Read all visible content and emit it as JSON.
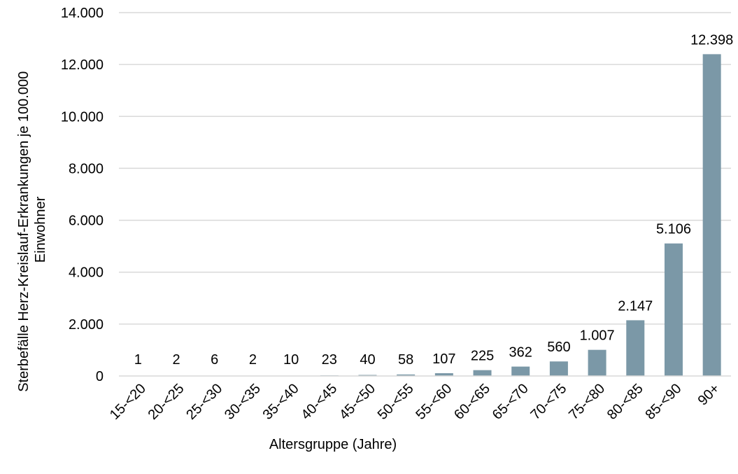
{
  "chart_data": {
    "type": "bar",
    "title": "",
    "xlabel": "Altersgruppe (Jahre)",
    "ylabel_lines": [
      "Sterbefälle Herz-Kreislauf-Erkrankungen je 100.000",
      "Einwohner"
    ],
    "categories": [
      "15-<20",
      "20-<25",
      "25-<30",
      "30-<35",
      "35-<40",
      "40-<45",
      "45-<50",
      "50-<55",
      "55-<60",
      "60-<65",
      "65-<70",
      "70-<75",
      "75-<80",
      "80-<85",
      "85-<90",
      "90+"
    ],
    "values": [
      1,
      2,
      6,
      2,
      10,
      23,
      40,
      58,
      107,
      225,
      362,
      560,
      1007,
      2147,
      5106,
      12398
    ],
    "data_labels": [
      "1",
      "2",
      "6",
      "2",
      "10",
      "23",
      "40",
      "58",
      "107",
      "225",
      "362",
      "560",
      "1.007",
      "2.147",
      "5.106",
      "12.398"
    ],
    "ylim": [
      0,
      14000
    ],
    "yticks": [
      0,
      2000,
      4000,
      6000,
      8000,
      10000,
      12000,
      14000
    ],
    "ytick_labels": [
      "0",
      "2.000",
      "4.000",
      "6.000",
      "8.000",
      "10.000",
      "12.000",
      "14.000"
    ],
    "grid": true,
    "bar_color": "#7b98a7",
    "grid_color": "#d9d9d9"
  }
}
